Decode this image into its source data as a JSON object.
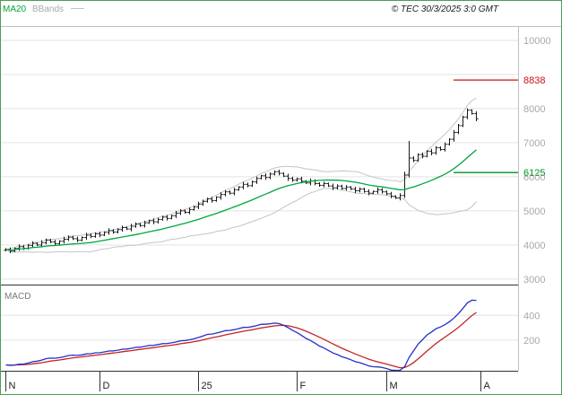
{
  "chart_data": {
    "type": "candlestick",
    "source_note": "© TEC 30/3/2025 3:0 GMT",
    "legend": [
      {
        "label": "MA20",
        "color": "#00a63e"
      },
      {
        "label": "BBands",
        "color": "#c4c4c4"
      }
    ],
    "x_axis": {
      "ticks": [
        {
          "label": "N",
          "day_index": 0
        },
        {
          "label": "D",
          "day_index": 21
        },
        {
          "label": "25",
          "day_index": 43
        },
        {
          "label": "F",
          "day_index": 65
        },
        {
          "label": "M",
          "day_index": 85
        },
        {
          "label": "A",
          "day_index": 106
        }
      ]
    },
    "price_axis": {
      "top_value": 10420,
      "bottom_value": 2840,
      "gridline_values": [
        3000,
        4000,
        5000,
        6000,
        7000,
        8000,
        9000,
        10000
      ],
      "ticks": [
        {
          "value": 10000,
          "label": "10000"
        },
        {
          "value": 8000,
          "label": "8000"
        },
        {
          "value": 7000,
          "label": "7000"
        },
        {
          "value": 6000,
          "label": "6000"
        },
        {
          "value": 5000,
          "label": "5000"
        },
        {
          "value": 4000,
          "label": "4000"
        },
        {
          "value": 3000,
          "label": "3000"
        }
      ]
    },
    "levels": [
      {
        "name": "resistance",
        "value": 8838,
        "label": "8838",
        "color": "#cc1111"
      },
      {
        "name": "support",
        "value": 6125,
        "label": "6125",
        "color": "#009318"
      }
    ],
    "overlays": {
      "ma": {
        "label": "MA20",
        "period": 20,
        "color": "#00a63e"
      },
      "bbands": {
        "label": "BBands",
        "period": 20,
        "stddev": 2,
        "color": "#c4c4c4"
      }
    },
    "macd_panel": {
      "label": "MACD",
      "fast": 12,
      "slow": 26,
      "signal": 9,
      "macd_color": "#2431c4",
      "signal_color": "#c42424",
      "axis": {
        "min": -40,
        "max": 620,
        "gridlines": [
          {
            "value": 400,
            "label": "400"
          },
          {
            "value": 200,
            "label": "200"
          }
        ]
      }
    },
    "colors": {
      "background": "#ffffff",
      "frame": "#4d9e53",
      "grid": "#e3e3e3",
      "axis_text": "#a8a8a8",
      "month_text": "#222222",
      "candle": "#1a1a1a",
      "bbands": "#c4c4c4",
      "panel_border": "#333333",
      "header_border": "#c0c0c0"
    },
    "candles_ohlc": [
      [
        3850,
        3910,
        3810,
        3870
      ],
      [
        3870,
        3930,
        3760,
        3820
      ],
      [
        3820,
        3930,
        3790,
        3900
      ],
      [
        3900,
        4020,
        3830,
        3950
      ],
      [
        3950,
        4000,
        3855,
        3905
      ],
      [
        3905,
        4030,
        3865,
        3990
      ],
      [
        3990,
        4110,
        3930,
        4050
      ],
      [
        4050,
        4080,
        3970,
        4000
      ],
      [
        4000,
        4140,
        3930,
        4070
      ],
      [
        4070,
        4190,
        4020,
        4140
      ],
      [
        4140,
        4180,
        4050,
        4090
      ],
      [
        4090,
        4150,
        3980,
        4040
      ],
      [
        4040,
        4140,
        4010,
        4110
      ],
      [
        4110,
        4240,
        4040,
        4170
      ],
      [
        4170,
        4280,
        4120,
        4230
      ],
      [
        4230,
        4270,
        4145,
        4185
      ],
      [
        4185,
        4245,
        4080,
        4140
      ],
      [
        4140,
        4250,
        4110,
        4220
      ],
      [
        4220,
        4360,
        4150,
        4290
      ],
      [
        4290,
        4340,
        4200,
        4250
      ],
      [
        4250,
        4370,
        4210,
        4330
      ],
      [
        4330,
        4390,
        4230,
        4290
      ],
      [
        4290,
        4400,
        4260,
        4370
      ],
      [
        4370,
        4490,
        4300,
        4420
      ],
      [
        4420,
        4470,
        4330,
        4380
      ],
      [
        4380,
        4490,
        4340,
        4450
      ],
      [
        4450,
        4570,
        4390,
        4510
      ],
      [
        4510,
        4540,
        4440,
        4470
      ],
      [
        4470,
        4620,
        4400,
        4550
      ],
      [
        4550,
        4660,
        4500,
        4610
      ],
      [
        4610,
        4650,
        4530,
        4570
      ],
      [
        4570,
        4710,
        4510,
        4650
      ],
      [
        4650,
        4740,
        4620,
        4710
      ],
      [
        4710,
        4780,
        4610,
        4680
      ],
      [
        4680,
        4800,
        4630,
        4750
      ],
      [
        4750,
        4860,
        4710,
        4820
      ],
      [
        4820,
        4880,
        4720,
        4780
      ],
      [
        4780,
        4890,
        4750,
        4860
      ],
      [
        4860,
        5000,
        4790,
        4930
      ],
      [
        4930,
        5050,
        4880,
        5000
      ],
      [
        5000,
        5040,
        4920,
        4960
      ],
      [
        4960,
        5100,
        4900,
        5040
      ],
      [
        5040,
        5150,
        5010,
        5120
      ],
      [
        5120,
        5270,
        5050,
        5200
      ],
      [
        5200,
        5330,
        5150,
        5280
      ],
      [
        5280,
        5390,
        5240,
        5350
      ],
      [
        5350,
        5410,
        5240,
        5300
      ],
      [
        5300,
        5430,
        5270,
        5400
      ],
      [
        5400,
        5550,
        5330,
        5480
      ],
      [
        5480,
        5610,
        5430,
        5560
      ],
      [
        5560,
        5600,
        5480,
        5520
      ],
      [
        5520,
        5680,
        5460,
        5620
      ],
      [
        5620,
        5730,
        5590,
        5700
      ],
      [
        5700,
        5850,
        5630,
        5780
      ],
      [
        5780,
        5830,
        5690,
        5740
      ],
      [
        5740,
        5890,
        5700,
        5850
      ],
      [
        5850,
        6010,
        5790,
        5950
      ],
      [
        5950,
        6060,
        5920,
        6030
      ],
      [
        6030,
        6100,
        5910,
        5980
      ],
      [
        5980,
        6130,
        5930,
        6080
      ],
      [
        6080,
        6190,
        6040,
        6150
      ],
      [
        6150,
        6210,
        6040,
        6100
      ],
      [
        6100,
        6130,
        5990,
        6020
      ],
      [
        6020,
        6090,
        5880,
        5950
      ],
      [
        5950,
        6000,
        5850,
        5900
      ],
      [
        5900,
        5980,
        5860,
        5940
      ],
      [
        5940,
        6000,
        5810,
        5870
      ],
      [
        5870,
        5900,
        5790,
        5820
      ],
      [
        5820,
        5950,
        5750,
        5880
      ],
      [
        5880,
        5930,
        5750,
        5800
      ],
      [
        5800,
        5840,
        5710,
        5750
      ],
      [
        5750,
        5860,
        5690,
        5800
      ],
      [
        5800,
        5830,
        5700,
        5730
      ],
      [
        5730,
        5800,
        5610,
        5680
      ],
      [
        5680,
        5780,
        5630,
        5730
      ],
      [
        5730,
        5770,
        5620,
        5660
      ],
      [
        5660,
        5760,
        5600,
        5700
      ],
      [
        5700,
        5730,
        5610,
        5640
      ],
      [
        5640,
        5710,
        5520,
        5590
      ],
      [
        5590,
        5690,
        5540,
        5640
      ],
      [
        5640,
        5680,
        5530,
        5570
      ],
      [
        5570,
        5630,
        5460,
        5520
      ],
      [
        5520,
        5600,
        5490,
        5570
      ],
      [
        5570,
        5690,
        5500,
        5620
      ],
      [
        5620,
        5670,
        5510,
        5560
      ],
      [
        5560,
        5600,
        5460,
        5500
      ],
      [
        5500,
        5560,
        5370,
        5430
      ],
      [
        5430,
        5460,
        5350,
        5380
      ],
      [
        5380,
        5520,
        5310,
        5450
      ],
      [
        5450,
        6150,
        5380,
        6050
      ],
      [
        6050,
        7050,
        5980,
        6550
      ],
      [
        6550,
        6600,
        6430,
        6480
      ],
      [
        6480,
        6690,
        6440,
        6650
      ],
      [
        6650,
        6710,
        6540,
        6600
      ],
      [
        6600,
        6780,
        6570,
        6750
      ],
      [
        6750,
        6820,
        6630,
        6700
      ],
      [
        6700,
        6900,
        6650,
        6850
      ],
      [
        6850,
        6890,
        6760,
        6800
      ],
      [
        6800,
        7010,
        6740,
        6950
      ],
      [
        6950,
        7130,
        6920,
        7100
      ],
      [
        7100,
        7370,
        7030,
        7300
      ],
      [
        7300,
        7550,
        7250,
        7500
      ],
      [
        7500,
        7790,
        7460,
        7750
      ],
      [
        7750,
        8010,
        7690,
        7950
      ],
      [
        7950,
        7980,
        7820,
        7850
      ],
      [
        7850,
        7920,
        7630,
        7700
      ]
    ]
  }
}
